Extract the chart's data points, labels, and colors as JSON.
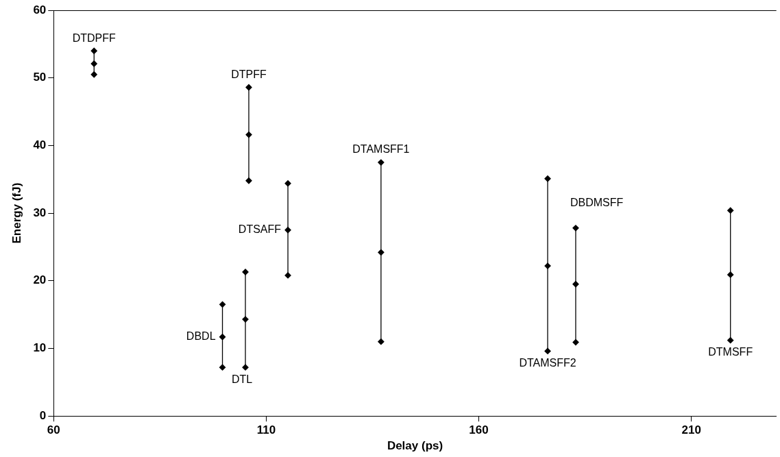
{
  "chart_data": {
    "type": "line",
    "xlabel": "Delay (ps)",
    "ylabel": "Energy (fJ)",
    "xlim": [
      60,
      230
    ],
    "xticks": [
      60,
      110,
      160,
      210
    ],
    "ylim": [
      0,
      60
    ],
    "yticks": [
      0,
      10,
      20,
      30,
      40,
      50,
      60
    ],
    "grid": false,
    "legend": false,
    "marker": "diamond",
    "line_style": "solid",
    "series": [
      {
        "name": "DTDPFF",
        "color": "#000000",
        "x": [
          69.5,
          69.5,
          69.5
        ],
        "values": [
          54,
          52.1,
          50.5
        ]
      },
      {
        "name": "DTPFF",
        "color": "#000000",
        "x": [
          105.9,
          105.9,
          105.9
        ],
        "values": [
          48.6,
          41.6,
          34.8
        ]
      },
      {
        "name": "DTSAFF",
        "color": "#000000",
        "x": [
          115.1,
          115.1,
          115.1
        ],
        "values": [
          34.4,
          27.5,
          20.8
        ]
      },
      {
        "name": "DBDL",
        "color": "#000000",
        "x": [
          99.7,
          99.7,
          99.7
        ],
        "values": [
          16.5,
          11.7,
          7.2
        ]
      },
      {
        "name": "DTL",
        "color": "#000000",
        "x": [
          105.1,
          105.1,
          105.1
        ],
        "values": [
          21.3,
          14.3,
          7.2
        ]
      },
      {
        "name": "DTAMSFF1",
        "color": "#000000",
        "x": [
          137,
          137,
          137
        ],
        "values": [
          37.5,
          24.2,
          11
        ]
      },
      {
        "name": "DTAMSFF2",
        "color": "#000000",
        "x": [
          176.2,
          176.2,
          176.2
        ],
        "values": [
          35.1,
          22.2,
          9.6
        ]
      },
      {
        "name": "DBDMSFF",
        "color": "#000000",
        "x": [
          182.8,
          182.8,
          182.8
        ],
        "values": [
          27.8,
          19.5,
          10.9
        ]
      },
      {
        "name": "DTMSFF",
        "color": "#000000",
        "x": [
          219.2,
          219.2,
          219.2
        ],
        "values": [
          30.4,
          20.9,
          11.2
        ]
      }
    ]
  }
}
